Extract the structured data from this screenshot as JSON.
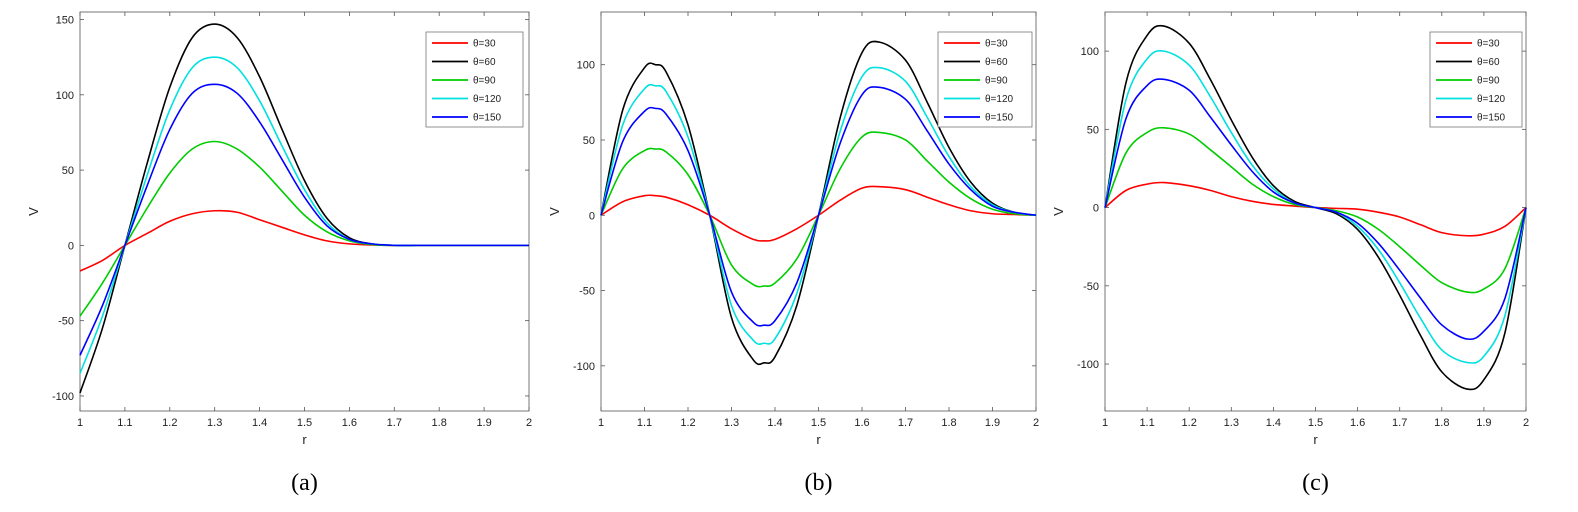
{
  "chart_data": [
    {
      "type": "line",
      "panel_label": "(a)",
      "xlabel": "r",
      "ylabel": "V",
      "xlim": [
        1,
        2
      ],
      "ylim": [
        -110,
        155
      ],
      "xticks": [
        1,
        1.1,
        1.2,
        1.3,
        1.4,
        1.5,
        1.6,
        1.7,
        1.8,
        1.9,
        2
      ],
      "yticks": [
        -100,
        -50,
        0,
        50,
        100,
        150
      ],
      "legend_position": "top-right",
      "x": [
        1,
        1.05,
        1.1,
        1.15,
        1.2,
        1.25,
        1.3,
        1.35,
        1.4,
        1.45,
        1.5,
        1.55,
        1.6,
        1.65,
        1.7,
        1.75,
        1.8,
        1.85,
        1.9,
        1.95,
        2
      ],
      "series": [
        {
          "name": "θ=30",
          "color": "#ff0000",
          "values": [
            -17,
            -10,
            0,
            8,
            16,
            21,
            23,
            22,
            17,
            12,
            7,
            3,
            1,
            0.3,
            0,
            0,
            0,
            0,
            0,
            0,
            0
          ]
        },
        {
          "name": "θ=60",
          "color": "#000000",
          "values": [
            -98,
            -55,
            0,
            55,
            105,
            138,
            147,
            138,
            112,
            77,
            43,
            18,
            5,
            1,
            0,
            0,
            0,
            0,
            0,
            0,
            0
          ]
        },
        {
          "name": "θ=90",
          "color": "#00cc00",
          "values": [
            -47,
            -25,
            0,
            25,
            48,
            64,
            69,
            64,
            52,
            36,
            20,
            9,
            3,
            0.5,
            0,
            0,
            0,
            0,
            0,
            0,
            0
          ]
        },
        {
          "name": "θ=120",
          "color": "#00e0e0",
          "values": [
            -85,
            -47,
            0,
            47,
            90,
            118,
            125,
            118,
            96,
            66,
            37,
            15,
            4,
            1,
            0,
            0,
            0,
            0,
            0,
            0,
            0
          ]
        },
        {
          "name": "θ=150",
          "color": "#0000ff",
          "values": [
            -73,
            -40,
            0,
            40,
            77,
            101,
            107,
            101,
            82,
            57,
            32,
            13,
            4,
            1,
            0,
            0,
            0,
            0,
            0,
            0,
            0
          ]
        }
      ]
    },
    {
      "type": "line",
      "panel_label": "(b)",
      "xlabel": "r",
      "ylabel": "V",
      "xlim": [
        1,
        2
      ],
      "ylim": [
        -130,
        135
      ],
      "xticks": [
        1,
        1.1,
        1.2,
        1.3,
        1.4,
        1.5,
        1.6,
        1.7,
        1.8,
        1.9,
        2
      ],
      "yticks": [
        -100,
        -50,
        0,
        50,
        100
      ],
      "legend_position": "top-right",
      "x": [
        1,
        1.05,
        1.1,
        1.125,
        1.15,
        1.2,
        1.25,
        1.3,
        1.35,
        1.375,
        1.4,
        1.45,
        1.5,
        1.55,
        1.6,
        1.64,
        1.7,
        1.75,
        1.8,
        1.85,
        1.9,
        1.95,
        2
      ],
      "series": [
        {
          "name": "θ=30",
          "color": "#ff0000",
          "values": [
            0,
            9,
            13,
            13,
            12,
            7,
            0,
            -9,
            -16,
            -17,
            -16,
            -9,
            0,
            10,
            18,
            19,
            17,
            12,
            7,
            3,
            1,
            0.5,
            0
          ]
        },
        {
          "name": "θ=60",
          "color": "#000000",
          "values": [
            0,
            70,
            98,
            100,
            95,
            60,
            0,
            -68,
            -96,
            -98,
            -94,
            -60,
            0,
            65,
            108,
            115,
            103,
            75,
            45,
            22,
            8,
            2,
            0
          ]
        },
        {
          "name": "θ=90",
          "color": "#00cc00",
          "values": [
            0,
            31,
            43,
            44,
            42,
            27,
            0,
            -33,
            -46,
            -47,
            -45,
            -29,
            0,
            31,
            52,
            55,
            50,
            36,
            22,
            11,
            4,
            1,
            0
          ]
        },
        {
          "name": "θ=120",
          "color": "#00e0e0",
          "values": [
            0,
            60,
            84,
            86,
            82,
            52,
            0,
            -60,
            -83,
            -85,
            -82,
            -52,
            0,
            56,
            92,
            98,
            89,
            65,
            39,
            19,
            7,
            2,
            0
          ]
        },
        {
          "name": "θ=150",
          "color": "#0000ff",
          "values": [
            0,
            49,
            69,
            71,
            67,
            43,
            0,
            -51,
            -71,
            -73,
            -70,
            -45,
            0,
            48,
            80,
            85,
            77,
            56,
            34,
            17,
            6,
            2,
            0
          ]
        }
      ]
    },
    {
      "type": "line",
      "panel_label": "(c)",
      "xlabel": "r",
      "ylabel": "V",
      "xlim": [
        1,
        2
      ],
      "ylim": [
        -130,
        125
      ],
      "xticks": [
        1,
        1.1,
        1.2,
        1.3,
        1.4,
        1.5,
        1.6,
        1.7,
        1.8,
        1.9,
        2
      ],
      "yticks": [
        -100,
        -50,
        0,
        50,
        100
      ],
      "legend_position": "top-right",
      "x": [
        1,
        1.05,
        1.1,
        1.14,
        1.2,
        1.25,
        1.3,
        1.35,
        1.4,
        1.45,
        1.5,
        1.55,
        1.6,
        1.65,
        1.7,
        1.75,
        1.8,
        1.86,
        1.9,
        1.95,
        2
      ],
      "series": [
        {
          "name": "θ=30",
          "color": "#ff0000",
          "values": [
            0,
            11,
            15,
            16,
            14,
            11,
            7,
            4,
            2,
            1,
            0,
            -0.5,
            -1,
            -3,
            -6,
            -11,
            -16,
            -18,
            -17,
            -12,
            0
          ]
        },
        {
          "name": "θ=60",
          "color": "#000000",
          "values": [
            0,
            80,
            110,
            116,
            105,
            82,
            56,
            32,
            14,
            4,
            0,
            -4,
            -14,
            -32,
            -56,
            -82,
            -105,
            -116,
            -110,
            -80,
            0
          ]
        },
        {
          "name": "θ=90",
          "color": "#00cc00",
          "values": [
            0,
            35,
            48,
            51,
            47,
            37,
            26,
            15,
            7,
            2,
            0,
            -2,
            -6,
            -14,
            -25,
            -37,
            -48,
            -54,
            -52,
            -39,
            0
          ]
        },
        {
          "name": "θ=120",
          "color": "#00e0e0",
          "values": [
            0,
            69,
            95,
            100,
            91,
            71,
            48,
            27,
            12,
            3,
            0,
            -3,
            -12,
            -27,
            -48,
            -71,
            -91,
            -99,
            -95,
            -69,
            0
          ]
        },
        {
          "name": "θ=150",
          "color": "#0000ff",
          "values": [
            0,
            57,
            78,
            82,
            75,
            58,
            40,
            23,
            10,
            3,
            0,
            -3,
            -10,
            -23,
            -40,
            -58,
            -75,
            -84,
            -79,
            -58,
            0
          ]
        }
      ]
    }
  ]
}
